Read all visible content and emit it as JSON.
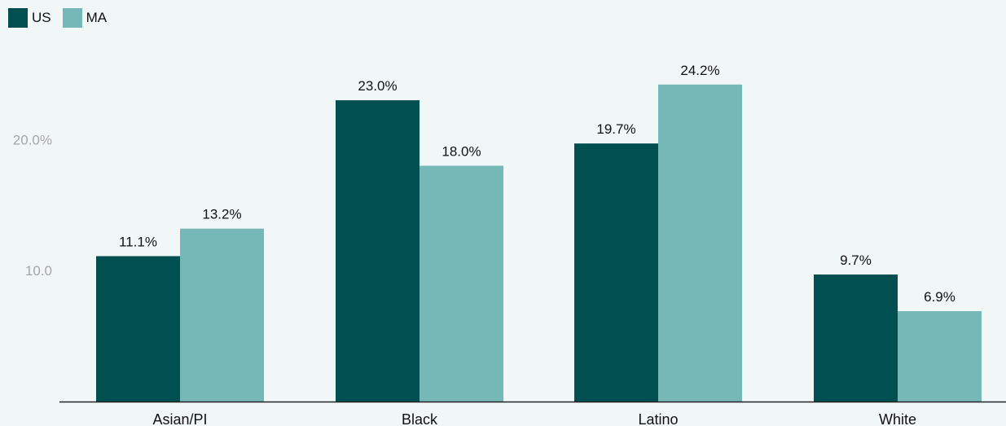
{
  "chart_data": {
    "type": "bar",
    "categories": [
      "Asian/PI",
      "Black",
      "Latino",
      "White"
    ],
    "series": [
      {
        "name": "US",
        "color": "#014f51",
        "values": [
          11.1,
          23.0,
          19.7,
          9.7
        ],
        "labels": [
          "11.1%",
          "23.0%",
          "19.7%",
          "9.7%"
        ]
      },
      {
        "name": "MA",
        "color": "#76b8b8",
        "values": [
          13.2,
          18.0,
          24.2,
          6.9
        ],
        "labels": [
          "13.2%",
          "18.0%",
          "24.2%",
          "6.9%"
        ]
      }
    ],
    "y_ticks": [
      {
        "value": 10,
        "label": "10.0"
      },
      {
        "value": 20,
        "label": "20.0%"
      }
    ],
    "ylim": [
      0,
      26.3
    ],
    "grid": false,
    "legend_position": "top-left",
    "title": "",
    "xlabel": "",
    "ylabel": ""
  }
}
